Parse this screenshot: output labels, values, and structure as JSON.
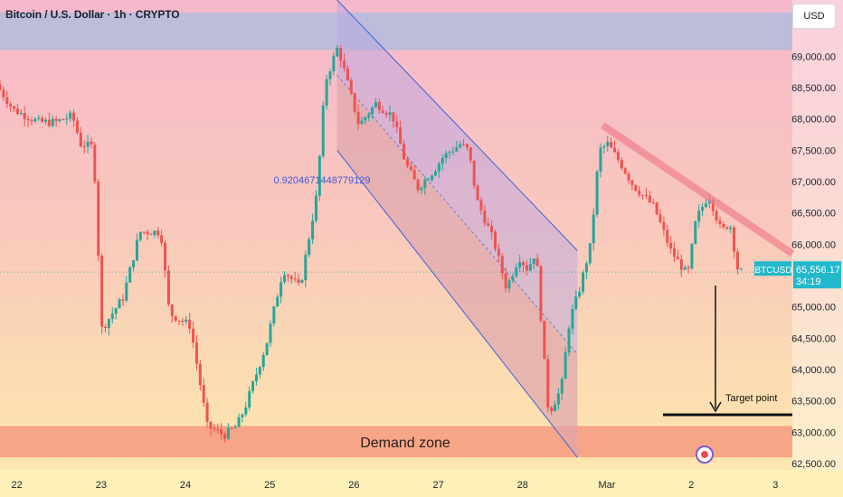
{
  "title": "Bitcoin / U.S. Dollar · 1h · CRYPTO",
  "currency_button": "USD",
  "last_price": {
    "symbol": "BTCUSD",
    "value": "65,556.17",
    "countdown": "34:19"
  },
  "annotations": {
    "demand_zone": "Demand zone",
    "target": "Target point",
    "fib_label": "0.9204671448779129"
  },
  "colors": {
    "up": "#26a69a",
    "down": "#ef5350",
    "accent_label": "#22b8cc",
    "channel_line": "#3b63d9",
    "trendline": "#f07f8f",
    "demand": "#f69a80",
    "resistance": "#aabee0"
  },
  "chart_data": {
    "type": "candlestick",
    "title": "Bitcoin / U.S. Dollar · 1h · CRYPTO",
    "y_range": [
      62400,
      69900
    ],
    "y_ticks": [
      "69,000.00",
      "68,500.00",
      "68,000.00",
      "67,500.00",
      "67,000.00",
      "66,500.00",
      "66,000.00",
      "65,000.00",
      "64,500.00",
      "64,000.00",
      "63,500.00",
      "63,000.00",
      "62,500.00"
    ],
    "y_tick_values": [
      69000,
      68500,
      68000,
      67500,
      67000,
      66500,
      66000,
      65000,
      64500,
      64000,
      63500,
      63000,
      62500
    ],
    "x_ticks": [
      "22",
      "23",
      "24",
      "25",
      "26",
      "27",
      "28",
      "Mar",
      "2",
      "3"
    ],
    "x_range": [
      21.8,
      31.2
    ],
    "x_tick_values": [
      22,
      23,
      24,
      25,
      26,
      27,
      28,
      29,
      30,
      31
    ],
    "price_path": [
      [
        21.8,
        68550
      ],
      [
        22.0,
        68150
      ],
      [
        22.3,
        67950
      ],
      [
        22.5,
        67950
      ],
      [
        22.7,
        68050
      ],
      [
        22.8,
        67600
      ],
      [
        22.95,
        67550
      ],
      [
        23.05,
        64650
      ],
      [
        23.3,
        65150
      ],
      [
        23.5,
        66200
      ],
      [
        23.75,
        66200
      ],
      [
        23.85,
        64900
      ],
      [
        24.1,
        64700
      ],
      [
        24.2,
        63900
      ],
      [
        24.3,
        63100
      ],
      [
        24.5,
        62950
      ],
      [
        24.65,
        63100
      ],
      [
        24.75,
        63400
      ],
      [
        25.0,
        64400
      ],
      [
        25.2,
        65600
      ],
      [
        25.4,
        65300
      ],
      [
        25.6,
        66800
      ],
      [
        25.7,
        68600
      ],
      [
        25.85,
        69150
      ],
      [
        26.0,
        68400
      ],
      [
        26.1,
        67900
      ],
      [
        26.3,
        68250
      ],
      [
        26.5,
        68050
      ],
      [
        26.65,
        67300
      ],
      [
        26.8,
        66900
      ],
      [
        27.0,
        67200
      ],
      [
        27.1,
        67400
      ],
      [
        27.3,
        67600
      ],
      [
        27.4,
        67500
      ],
      [
        27.5,
        66700
      ],
      [
        27.7,
        66050
      ],
      [
        27.85,
        65300
      ],
      [
        28.0,
        65800
      ],
      [
        28.1,
        65600
      ],
      [
        28.2,
        65900
      ],
      [
        28.3,
        64100
      ],
      [
        28.35,
        63300
      ],
      [
        28.5,
        63700
      ],
      [
        28.6,
        64800
      ],
      [
        28.7,
        65200
      ],
      [
        28.85,
        66000
      ],
      [
        28.95,
        67500
      ],
      [
        29.05,
        67600
      ],
      [
        29.2,
        67300
      ],
      [
        29.35,
        66950
      ],
      [
        29.6,
        66600
      ],
      [
        29.8,
        65900
      ],
      [
        30.0,
        65500
      ],
      [
        30.1,
        66400
      ],
      [
        30.25,
        66800
      ],
      [
        30.4,
        66200
      ],
      [
        30.5,
        66350
      ],
      [
        30.6,
        65556
      ]
    ],
    "series": [
      {
        "name": "BTCUSD",
        "last": 65556.17
      }
    ]
  }
}
